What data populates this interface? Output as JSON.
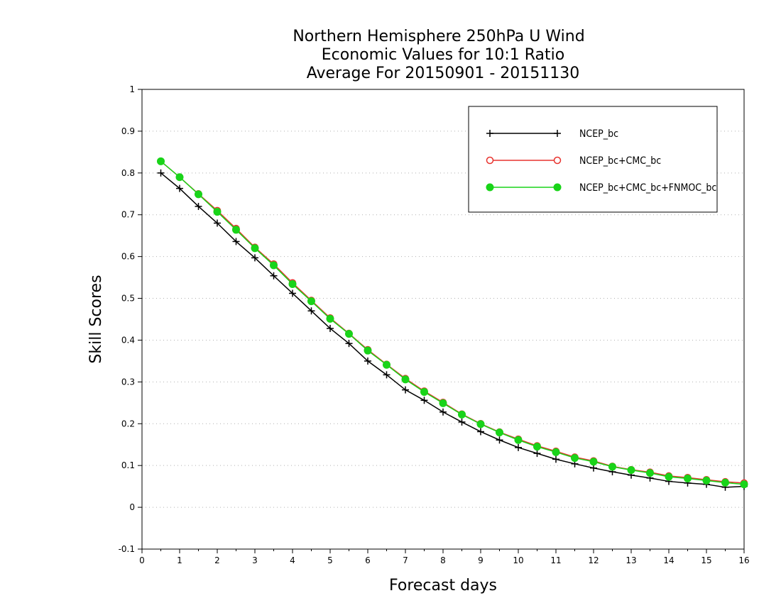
{
  "chart_data": {
    "type": "line",
    "title_lines": [
      "Northern Hemisphere 250hPa U Wind",
      "Economic Values for 10:1 Ratio",
      "Average For 20150901 - 20151130"
    ],
    "xlabel": "Forecast days",
    "ylabel": "Skill Scores",
    "xlim": [
      0,
      16
    ],
    "ylim": [
      -0.1,
      1
    ],
    "xticks": [
      "0",
      "1",
      "2",
      "3",
      "4",
      "5",
      "6",
      "7",
      "8",
      "9",
      "10",
      "11",
      "12",
      "13",
      "14",
      "15",
      "16"
    ],
    "yticks": [
      "-0.1",
      "0",
      "0.1",
      "0.2",
      "0.3",
      "0.4",
      "0.5",
      "0.6",
      "0.7",
      "0.8",
      "0.9",
      "1"
    ],
    "grid": "horizontal-dotted",
    "legend_position": "top-right",
    "x": [
      0.5,
      1,
      1.5,
      2,
      2.5,
      3,
      3.5,
      4,
      4.5,
      5,
      5.5,
      6,
      6.5,
      7,
      7.5,
      8,
      8.5,
      9,
      9.5,
      10,
      10.5,
      11,
      11.5,
      12,
      12.5,
      13,
      13.5,
      14,
      14.5,
      15,
      15.5,
      16
    ],
    "series": [
      {
        "name": "NCEP_bc",
        "color": "#000000",
        "marker": "plus",
        "values": [
          0.8,
          0.763,
          0.72,
          0.68,
          0.636,
          0.597,
          0.554,
          0.512,
          0.47,
          0.428,
          0.392,
          0.35,
          0.317,
          0.281,
          0.256,
          0.228,
          0.204,
          0.181,
          0.161,
          0.143,
          0.129,
          0.115,
          0.104,
          0.094,
          0.085,
          0.077,
          0.07,
          0.062,
          0.058,
          0.055,
          0.048,
          0.05
        ]
      },
      {
        "name": "NCEP_bc+CMC_bc",
        "color": "#e8332e",
        "marker": "circle-open",
        "values": [
          0.828,
          0.79,
          0.75,
          0.71,
          0.667,
          0.622,
          0.582,
          0.537,
          0.495,
          0.453,
          0.416,
          0.377,
          0.342,
          0.308,
          0.278,
          0.251,
          0.223,
          0.2,
          0.18,
          0.163,
          0.147,
          0.134,
          0.12,
          0.111,
          0.098,
          0.09,
          0.084,
          0.075,
          0.071,
          0.066,
          0.061,
          0.058
        ]
      },
      {
        "name": "NCEP_bc+CMC_bc+FNMOC_bc",
        "color": "#19d419",
        "marker": "circle-filled",
        "values": [
          0.828,
          0.79,
          0.749,
          0.707,
          0.664,
          0.62,
          0.579,
          0.534,
          0.493,
          0.451,
          0.415,
          0.375,
          0.341,
          0.306,
          0.276,
          0.249,
          0.222,
          0.199,
          0.179,
          0.161,
          0.145,
          0.132,
          0.118,
          0.109,
          0.097,
          0.089,
          0.082,
          0.073,
          0.069,
          0.064,
          0.059,
          0.055
        ]
      }
    ]
  }
}
